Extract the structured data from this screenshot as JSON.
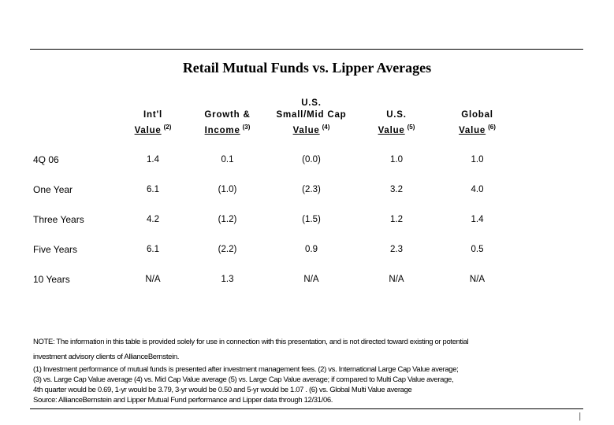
{
  "title": "Retail Mutual Funds vs. Lipper Averages",
  "table": {
    "columns": [
      {
        "top": "",
        "mid": "Int'l",
        "bottom": "Value",
        "sup": "(2)"
      },
      {
        "top": "",
        "mid": "Growth &",
        "bottom": "Income",
        "sup": "(3)"
      },
      {
        "top": "U.S.",
        "mid": "Small/Mid Cap",
        "bottom": "Value",
        "sup": "(4)"
      },
      {
        "top": "",
        "mid": "U.S.",
        "bottom": "Value",
        "sup": "(5)"
      },
      {
        "top": "",
        "mid": "Global",
        "bottom": "Value",
        "sup": "(6)"
      }
    ],
    "rows": [
      {
        "label": "4Q 06",
        "values": [
          "1.4",
          "0.1",
          "(0.0)",
          "1.0",
          "1.0"
        ]
      },
      {
        "label": "One Year",
        "values": [
          "6.1",
          "(1.0)",
          "(2.3)",
          "3.2",
          "4.0"
        ]
      },
      {
        "label": "Three Years",
        "values": [
          "4.2",
          "(1.2)",
          "(1.5)",
          "1.2",
          "1.4"
        ]
      },
      {
        "label": "Five Years",
        "values": [
          "6.1",
          "(2.2)",
          "0.9",
          "2.3",
          "0.5"
        ]
      },
      {
        "label": "10 Years",
        "values": [
          "N/A",
          "1.3",
          "N/A",
          "N/A",
          "N/A"
        ]
      }
    ]
  },
  "notes": [
    "NOTE: The information in this table is provided solely for use in connection with this presentation, and is not directed toward existing or potential",
    "investment advisory clients of AllianceBernstein.",
    "(1) Investment performance of mutual funds is presented after investment management fees. (2) vs. International Large Cap Value average;",
    "(3) vs. Large Cap Value average (4) vs. Mid Cap Value average (5) vs. Large Cap Value average; if compared to Multi Cap Value average,",
    "4th quarter would be 0.69, 1-yr would be 3.79, 3-yr would be 0.50 and 5-yr would be 1.07 . (6) vs. Global Multi Value average",
    "Source: AllianceBernstein and Lipper Mutual Fund performance and Lipper data through 12/31/06."
  ],
  "footer": {
    "page_mark": "|"
  }
}
